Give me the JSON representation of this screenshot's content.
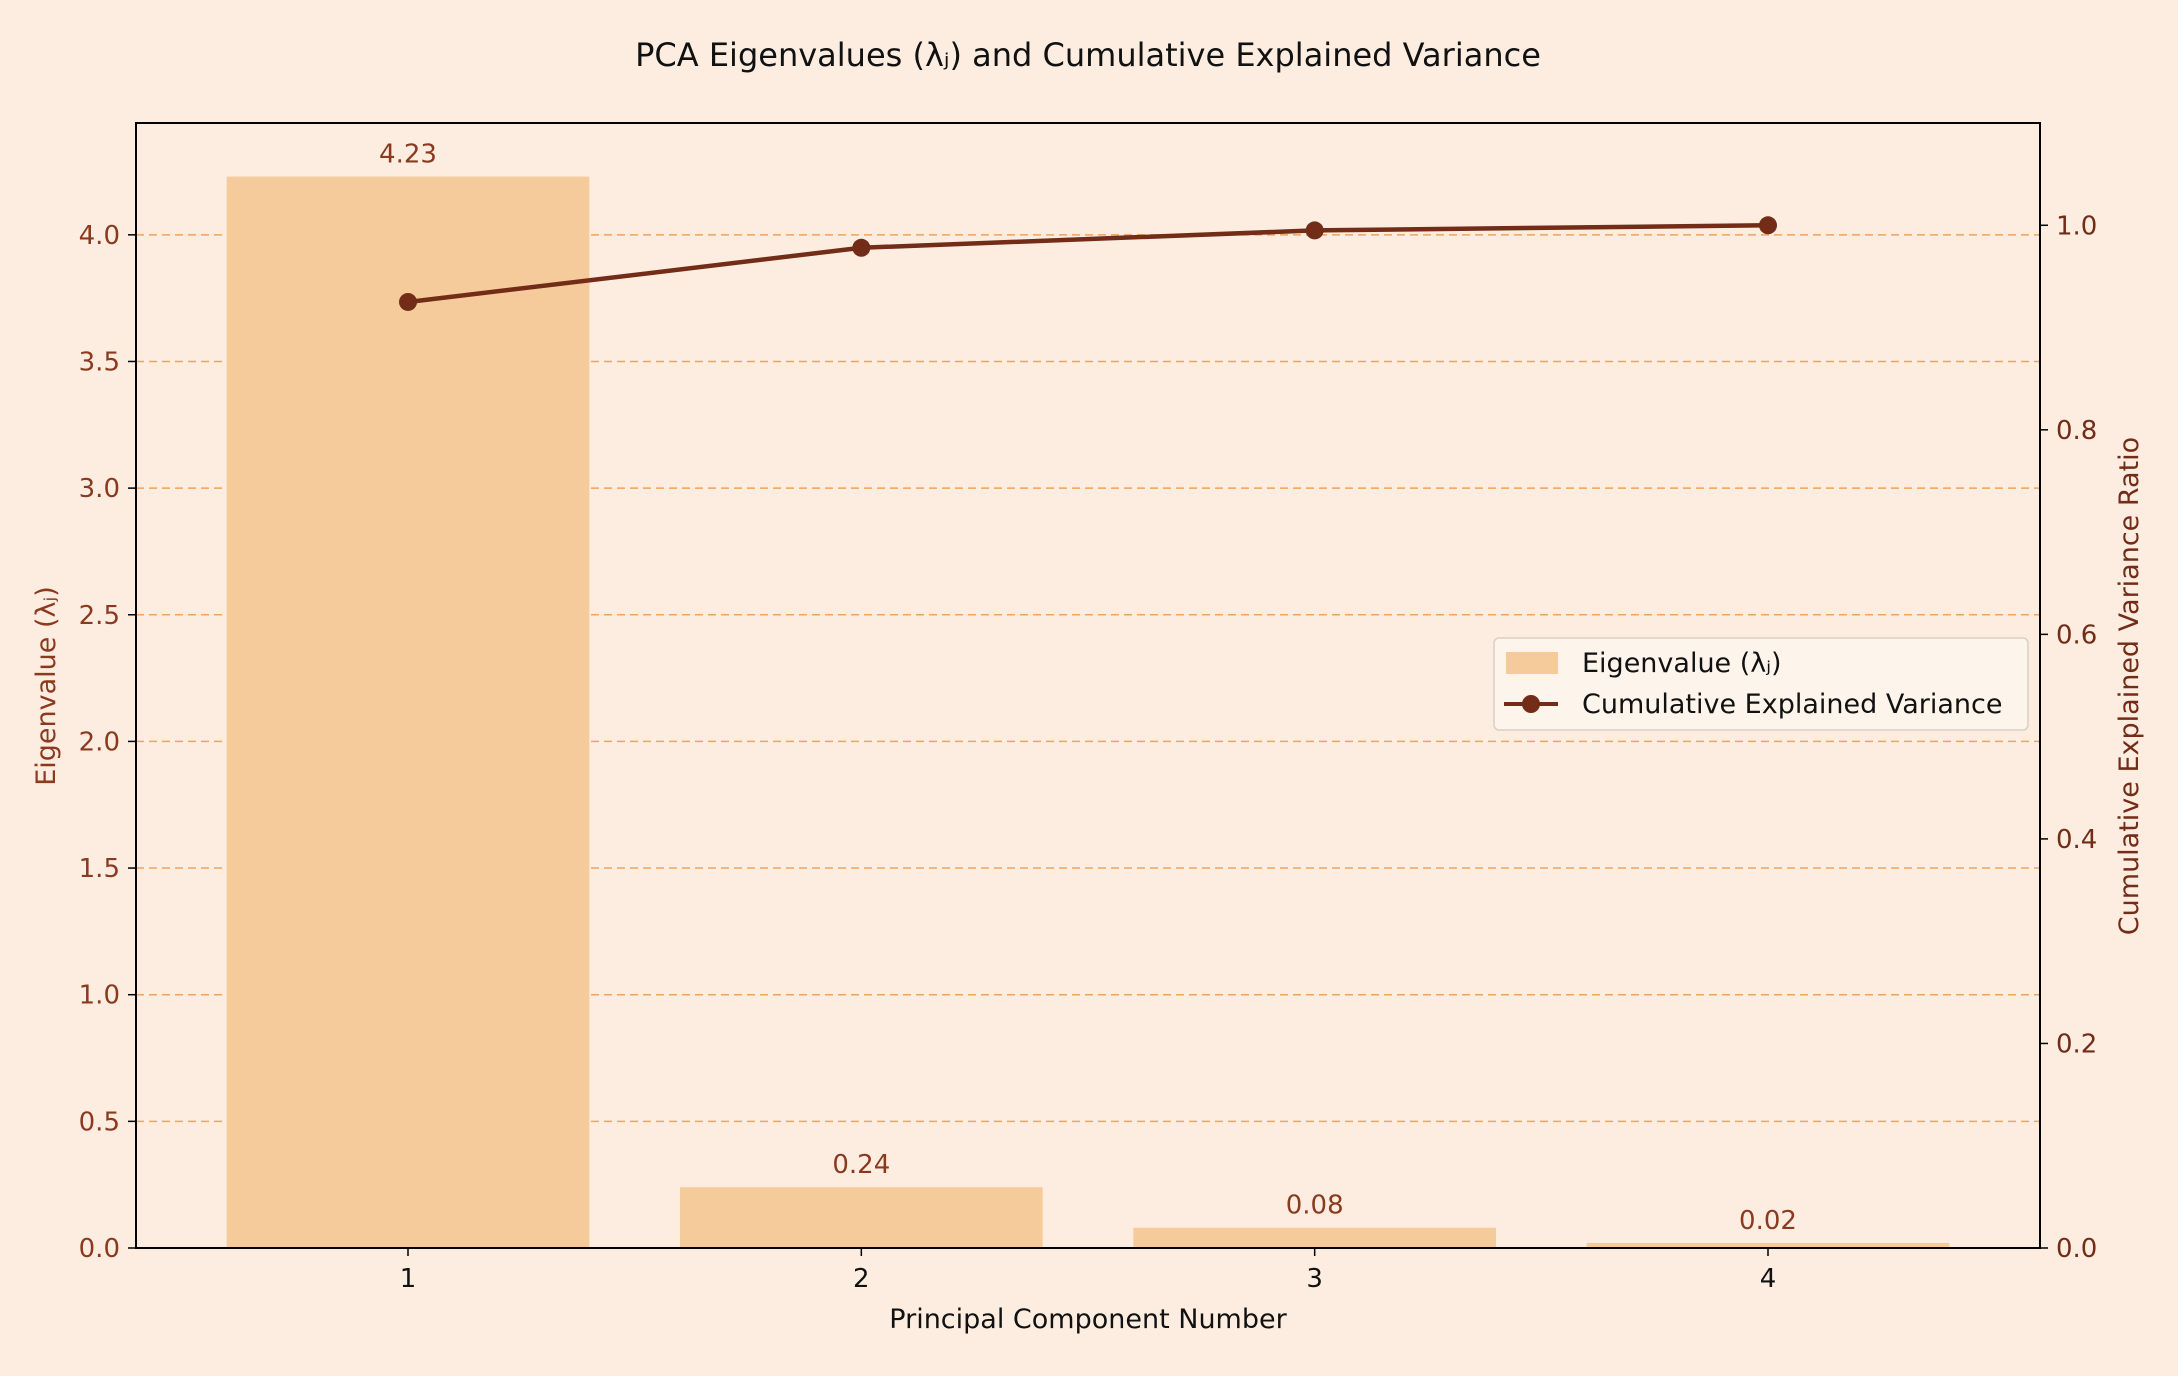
{
  "chart_data": {
    "type": "bar+line",
    "title": "PCA Eigenvalues (λⱼ) and Cumulative Explained Variance",
    "xlabel": "Principal Component Number",
    "ylabel_left": "Eigenvalue (λⱼ)",
    "ylabel_right": "Cumulative Explained Variance Ratio",
    "categories": [
      "1",
      "2",
      "3",
      "4"
    ],
    "bar_series": {
      "name": "Eigenvalue (λⱼ)",
      "values": [
        4.23,
        0.24,
        0.08,
        0.02
      ],
      "data_labels": [
        "4.23",
        "0.24",
        "0.08",
        "0.02"
      ]
    },
    "line_series": {
      "name": "Cumulative Explained Variance",
      "values": [
        0.925,
        0.978,
        0.995,
        1.0
      ]
    },
    "ylim_left": [
      0,
      4.4415
    ],
    "ylim_right": [
      0,
      1.1
    ],
    "yticks_left": [
      "0.0",
      "0.5",
      "1.0",
      "1.5",
      "2.0",
      "2.5",
      "3.0",
      "3.5",
      "4.0"
    ],
    "yticks_left_values": [
      0,
      0.5,
      1.0,
      1.5,
      2.0,
      2.5,
      3.0,
      3.5,
      4.0
    ],
    "yticks_right": [
      "0.0",
      "0.2",
      "0.4",
      "0.6",
      "0.8",
      "1.0"
    ],
    "yticks_right_values": [
      0,
      0.2,
      0.4,
      0.6,
      0.8,
      1.0
    ],
    "grid": "horizontal dashed",
    "legend_position": "center-right",
    "colors": {
      "background": "#fcede0",
      "bar": "#f5cb9b",
      "line": "#722c17",
      "grid": "#f0a35a",
      "left_axis_text": "#8b3a1f",
      "right_axis_text": "#722c17",
      "text": "#111111"
    }
  }
}
